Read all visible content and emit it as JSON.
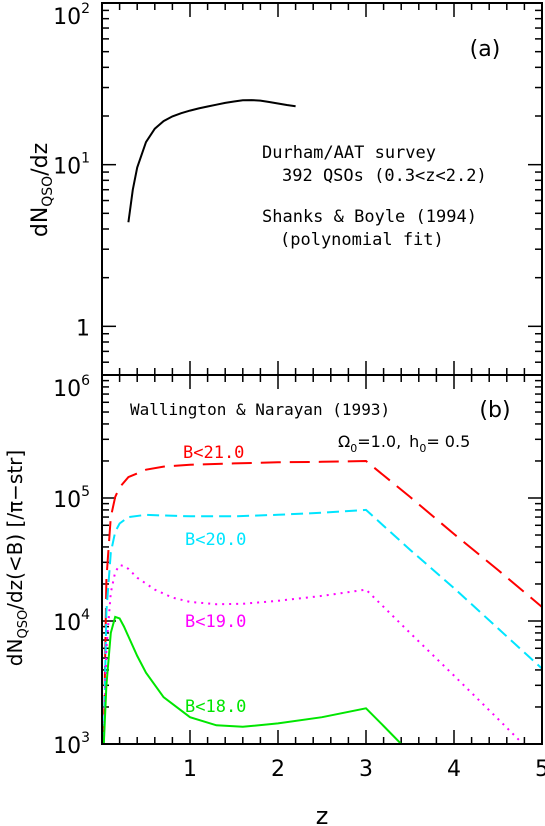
{
  "chart_data": [
    {
      "panel": "(a)",
      "type": "line",
      "ylabel_main": "dN",
      "ylabel_sub": "QSO",
      "ylabel_tail": "/dz",
      "yscale": "log",
      "ylim": [
        0.5,
        100
      ],
      "xlim": [
        0,
        5
      ],
      "yticks": [
        {
          "value": 1,
          "base": "1",
          "exp": ""
        },
        {
          "value": 10,
          "base": "10",
          "exp": "1"
        },
        {
          "value": 100,
          "base": "10",
          "exp": "2"
        }
      ],
      "annotations": [
        "Durham/AAT survey",
        "392 QSOs (0.3<z<2.2)",
        "Shanks & Boyle (1994)",
        "(polynomial fit)"
      ],
      "series": [
        {
          "color": "#000000",
          "dash": "solid",
          "x": [
            0.3,
            0.35,
            0.4,
            0.5,
            0.6,
            0.7,
            0.8,
            0.9,
            1.0,
            1.1,
            1.2,
            1.3,
            1.4,
            1.5,
            1.6,
            1.7,
            1.8,
            1.9,
            2.0,
            2.1,
            2.2
          ],
          "y": [
            4.4,
            7.0,
            9.6,
            13.8,
            16.7,
            18.6,
            19.9,
            20.8,
            21.6,
            22.3,
            22.9,
            23.5,
            24.1,
            24.6,
            25.0,
            25.1,
            24.9,
            24.4,
            23.9,
            23.4,
            23.0
          ]
        }
      ]
    },
    {
      "panel": "(b)",
      "type": "line",
      "title": "Wallington & Narayan (1993)",
      "params": {
        "omega_label": "Ω",
        "omega_sub": "0",
        "omega_value": "=1.0,",
        "h_label": "h",
        "h_sub": "0",
        "h_value": "= 0.5"
      },
      "ylabel_main": "dN",
      "ylabel_sub": "QSO",
      "ylabel_tail": "/dz(<B)  [/π−str]",
      "xlabel": "z",
      "yscale": "log",
      "ylim": [
        1000,
        1000000
      ],
      "xlim": [
        0,
        5
      ],
      "xticks": [
        "1",
        "2",
        "3",
        "4",
        "5"
      ],
      "yticks": [
        {
          "value": 1000,
          "base": "10",
          "exp": "3"
        },
        {
          "value": 10000,
          "base": "10",
          "exp": "4"
        },
        {
          "value": 100000,
          "base": "10",
          "exp": "5"
        },
        {
          "value": 1000000,
          "base": "10",
          "exp": "6"
        }
      ],
      "series": [
        {
          "name": "B<21.0",
          "color": "#ff0000",
          "dash": "20,9",
          "x": [
            0.02,
            0.05,
            0.1,
            0.15,
            0.2,
            0.3,
            0.5,
            0.7,
            1.0,
            1.5,
            2.0,
            2.5,
            3.0,
            3.5,
            4.0,
            4.5,
            5.0
          ],
          "y": [
            1000,
            22000,
            70000,
            102000,
            122000,
            148000,
            170000,
            180000,
            186000,
            191000,
            195000,
            197000,
            200000,
            102000,
            51000,
            26000,
            13000
          ]
        },
        {
          "name": "B<20.0",
          "color": "#00e5ff",
          "dash": "12,6",
          "x": [
            0.02,
            0.05,
            0.1,
            0.15,
            0.2,
            0.3,
            0.5,
            0.7,
            1.0,
            1.5,
            2.0,
            2.5,
            3.0,
            3.5,
            4.0,
            4.5,
            5.0
          ],
          "y": [
            1000,
            12000,
            36000,
            53000,
            62000,
            70000,
            73000,
            72000,
            71000,
            71000,
            73000,
            76000,
            80000,
            38000,
            18500,
            8700,
            4100
          ]
        },
        {
          "name": "B<19.0",
          "color": "#ff00ff",
          "dash": "2,5",
          "x": [
            0.02,
            0.05,
            0.1,
            0.15,
            0.2,
            0.25,
            0.3,
            0.4,
            0.6,
            0.8,
            1.0,
            1.3,
            1.6,
            2.0,
            2.5,
            3.0,
            3.5,
            4.0,
            4.5,
            5.0
          ],
          "y": [
            1000,
            6000,
            17000,
            25000,
            28500,
            28000,
            26500,
            22500,
            18000,
            15500,
            14300,
            13700,
            13800,
            14600,
            16000,
            18000,
            8000,
            3600,
            1600,
            700
          ]
        },
        {
          "name": "B<18.0",
          "color": "#00e600",
          "dash": "solid",
          "x": [
            0.02,
            0.05,
            0.1,
            0.15,
            0.2,
            0.25,
            0.3,
            0.4,
            0.5,
            0.7,
            1.0,
            1.3,
            1.6,
            2.0,
            2.5,
            3.0,
            3.2,
            3.4
          ],
          "y": [
            1000,
            3000,
            8000,
            10800,
            10500,
            9000,
            7500,
            5200,
            3800,
            2400,
            1650,
            1420,
            1380,
            1470,
            1650,
            1950,
            1400,
            1000
          ]
        }
      ]
    }
  ],
  "colors": {
    "frame": "#000000",
    "background": "#ffffff"
  }
}
